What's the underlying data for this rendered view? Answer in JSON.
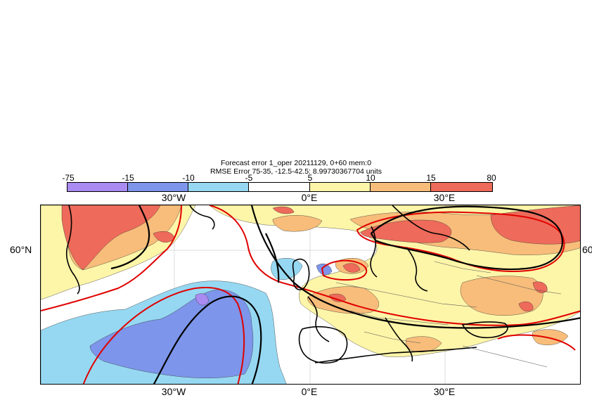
{
  "title": {
    "line1": "Forecast error  1_oper 20211129, 0+60 mem:0",
    "line2": "RMSE Error 75-35, -12.5-42.5: 8.99730367704 units"
  },
  "colorbar": {
    "labels": [
      "-75",
      "-15",
      "-10",
      "-5",
      "5",
      "10",
      "15",
      "80"
    ],
    "colors": [
      "#a98bf2",
      "#7d95ea",
      "#96d8f2",
      "#ffffff",
      "#fdf5a8",
      "#f8bd7a",
      "#ee6a5a"
    ]
  },
  "axes": {
    "top_ticks": [
      "30°W",
      "0°E",
      "30°E"
    ],
    "bottom_ticks": [
      "30°W",
      "0°E",
      "30°E"
    ],
    "lat_left": "60°N",
    "lat_right": "60"
  },
  "map": {
    "field_colors": {
      "strong_neg": "#a98bf2",
      "neg": "#7d95ea",
      "weak_neg": "#96d8f2",
      "weak_pos": "#fdf5a8",
      "pos": "#f8bd7a",
      "strong_pos": "#ee6a5a"
    },
    "contour_color_red": "#e00000",
    "coast_color": "#000000"
  }
}
